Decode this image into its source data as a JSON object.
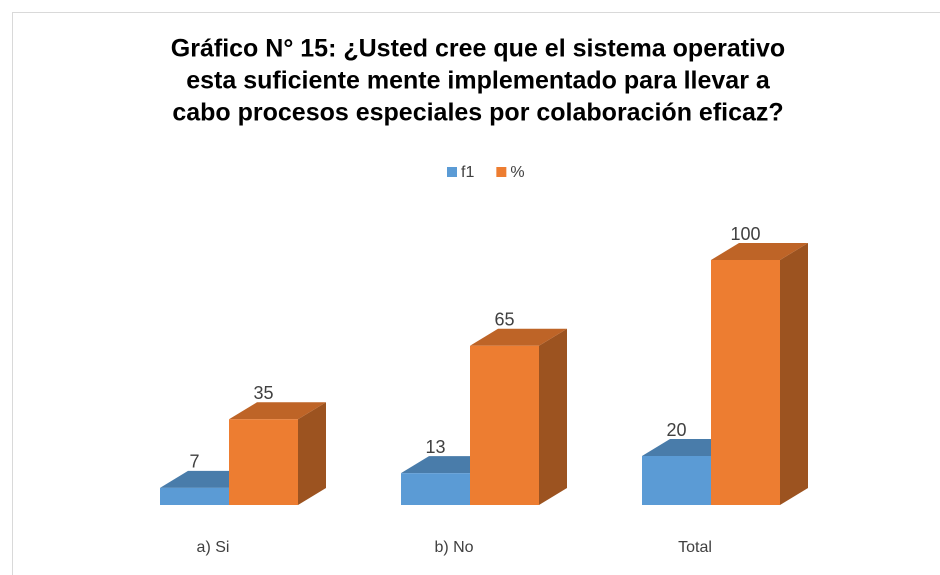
{
  "chart_data": {
    "type": "bar3d",
    "title": [
      "Gráfico N° 15: ¿Usted cree que el sistema operativo",
      "esta suficiente mente implementado para llevar a",
      "cabo procesos especiales por colaboración eficaz?"
    ],
    "categories": [
      "a) Si",
      "b) No",
      "Total"
    ],
    "series": [
      {
        "name": "f1",
        "color": "#5b9bd5",
        "values": [
          7,
          13,
          20
        ]
      },
      {
        "name": "%",
        "color": "#ed7d31",
        "values": [
          35,
          65,
          100
        ]
      }
    ],
    "legend": "top"
  }
}
